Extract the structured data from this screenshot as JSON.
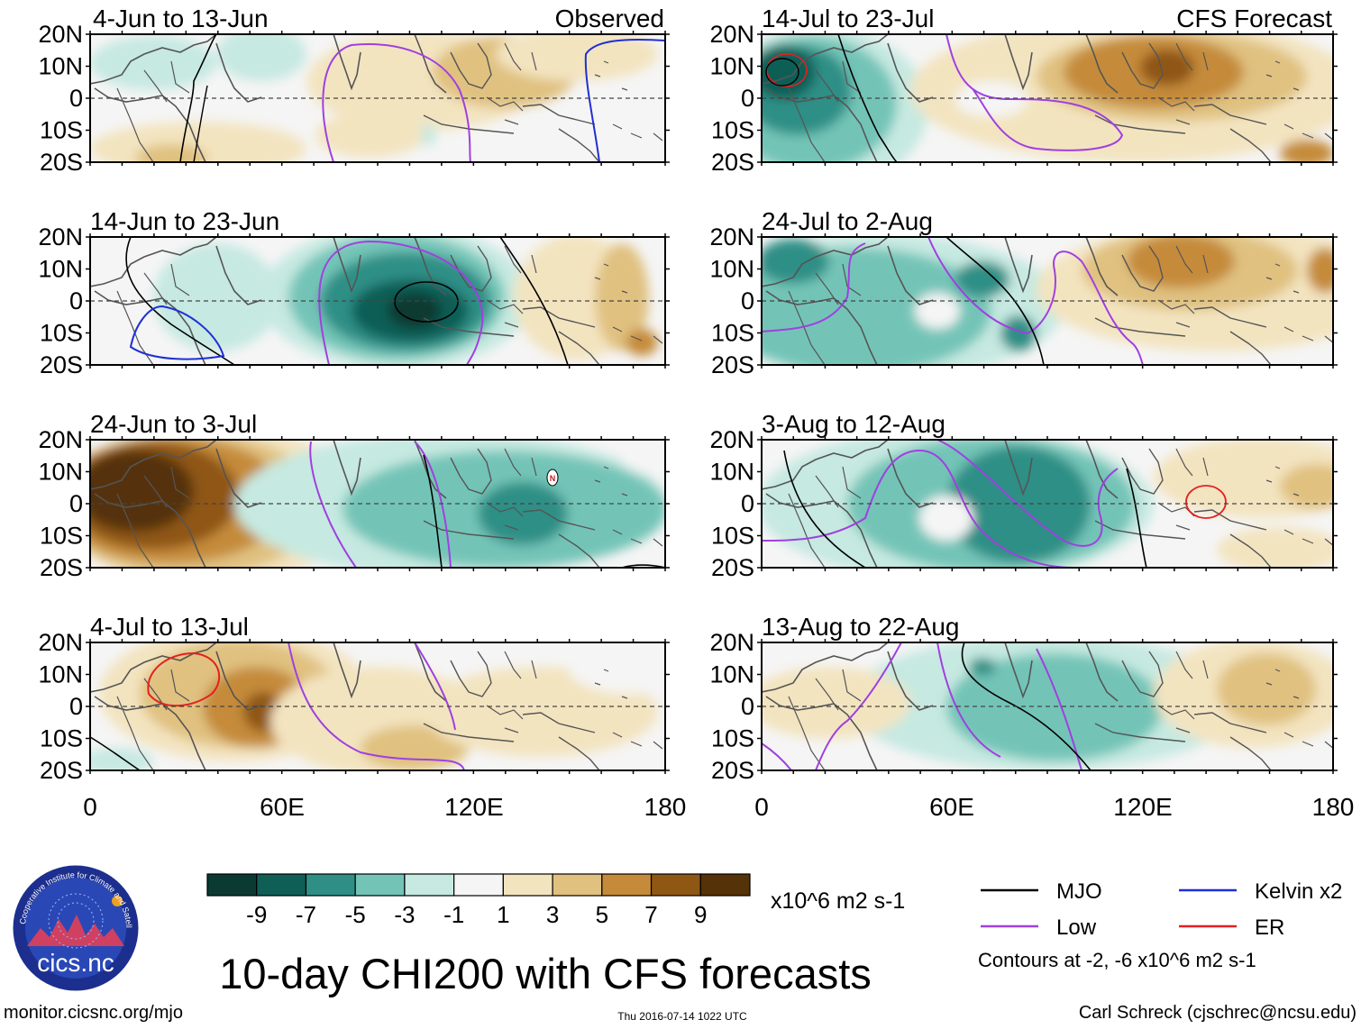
{
  "figure": {
    "title": "10-day CHI200 with CFS forecasts",
    "left_label": "Observed",
    "right_label": "CFS Forecast",
    "website": "monitor.cicsnc.org/mjo",
    "timestamp": "Thu 2016-07-14 1022 UTC",
    "author": "Carl Schreck (cjschrec@ncsu.edu)",
    "logo_text": "cics.nc",
    "logo_ring_text": "Cooperative Institute for Climate and Satellites"
  },
  "panels_left": [
    {
      "title": "4-Jun to 13-Jun"
    },
    {
      "title": "14-Jun to 23-Jun"
    },
    {
      "title": "24-Jun to 3-Jul"
    },
    {
      "title": "4-Jul to 13-Jul"
    }
  ],
  "panels_right": [
    {
      "title": "14-Jul to 23-Jul"
    },
    {
      "title": "24-Jul to 2-Aug"
    },
    {
      "title": "3-Aug to 12-Aug"
    },
    {
      "title": "13-Aug to 22-Aug"
    }
  ],
  "axes": {
    "lat_ticks": [
      "20N",
      "10N",
      "0",
      "10S",
      "20S"
    ],
    "lon_ticks": [
      "0",
      "60E",
      "120E",
      "180"
    ]
  },
  "colorbar": {
    "unit": "x10^6 m2 s-1",
    "tick_labels": [
      "-9",
      "-7",
      "-5",
      "-3",
      "-1",
      "1",
      "3",
      "5",
      "7",
      "9"
    ],
    "colors": [
      "#0b3a33",
      "#0f5f57",
      "#2f8f86",
      "#73c4b7",
      "#c6e9e1",
      "#f5f5f5",
      "#f3e4c0",
      "#e0c180",
      "#c58b3a",
      "#8f5714",
      "#553207"
    ]
  },
  "legend": {
    "items": [
      {
        "label": "MJO",
        "color": "#000000"
      },
      {
        "label": "Kelvin x2",
        "color": "#1f2fd6"
      },
      {
        "label": "Low",
        "color": "#a040e0"
      },
      {
        "label": "ER",
        "color": "#e42020"
      }
    ],
    "note": "Contours at -2, -6 x10^6 m2 s-1"
  },
  "marker": {
    "label": "N"
  }
}
